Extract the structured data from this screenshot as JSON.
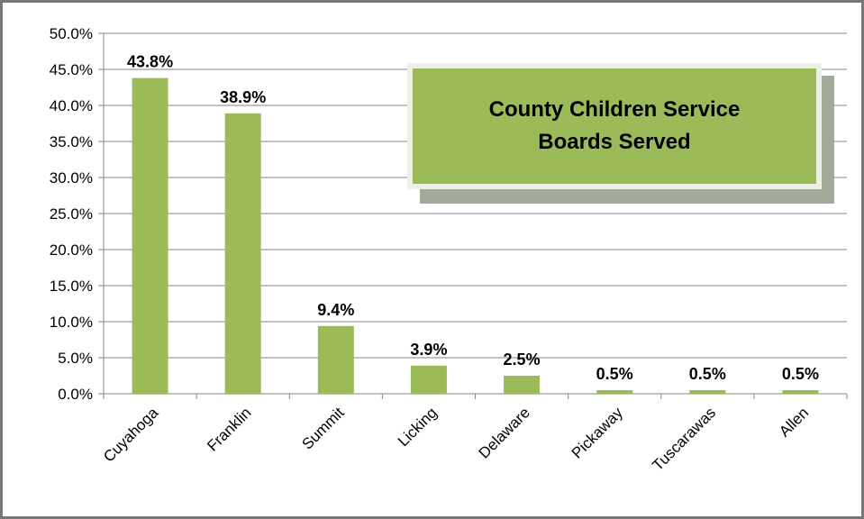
{
  "chart_data": {
    "type": "bar",
    "title": "County Children Service Boards Served",
    "categories": [
      "Cuyahoga",
      "Franklin",
      "Summit",
      "Licking",
      "Delaware",
      "Pickaway",
      "Tuscarawas",
      "Allen"
    ],
    "values": [
      43.8,
      38.9,
      9.4,
      3.9,
      2.5,
      0.5,
      0.5,
      0.5
    ],
    "value_labels": [
      "43.8%",
      "38.9%",
      "9.4%",
      "3.9%",
      "2.5%",
      "0.5%",
      "0.5%",
      "0.5%"
    ],
    "xlabel": "",
    "ylabel": "",
    "ylim": [
      0,
      50
    ],
    "y_ticks": [
      0,
      5,
      10,
      15,
      20,
      25,
      30,
      35,
      40,
      45,
      50
    ],
    "y_tick_labels": [
      "0.0%",
      "5.0%",
      "10.0%",
      "15.0%",
      "20.0%",
      "25.0%",
      "30.0%",
      "35.0%",
      "40.0%",
      "45.0%",
      "50.0%"
    ],
    "grid": true,
    "legend": "none",
    "bar_color": "#9bbb59",
    "gridline_color": "#868686",
    "title_box_color": "#9bbb59"
  }
}
